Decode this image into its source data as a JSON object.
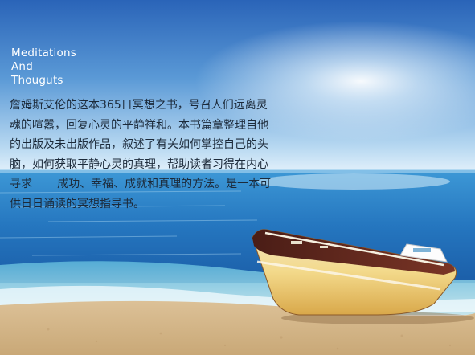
{
  "title_lines": [
    "Meditations",
    "And",
    "Thouguts"
  ],
  "body_lines": [
    "詹姆斯艾伦的这本365日冥想之书，号召人们远离灵",
    "魂的喧嚣，回复心灵的平静祥和。本书篇章整理自他",
    "的出版及未出版作品，叙述了有关如何掌控自己的头",
    "脑，如何获取平静心灵的真理，帮助读者习得在内心",
    "寻求       成功、幸福、成就和真理的方法。是一本可",
    "供日日诵读的冥想指导书。"
  ],
  "colors": {
    "sky_top": "#2f6fc0",
    "sky_horizon": "#cfe6f7",
    "sea_far": "#3a8fd0",
    "sea_near": "#1d5fa8",
    "sand": "#e2c9a0",
    "boat_hull_top": "#6b2a1e",
    "boat_hull_bottom": "#f1d27a",
    "text_dark": "#1c2a3a",
    "text_light": "#ffffff"
  }
}
